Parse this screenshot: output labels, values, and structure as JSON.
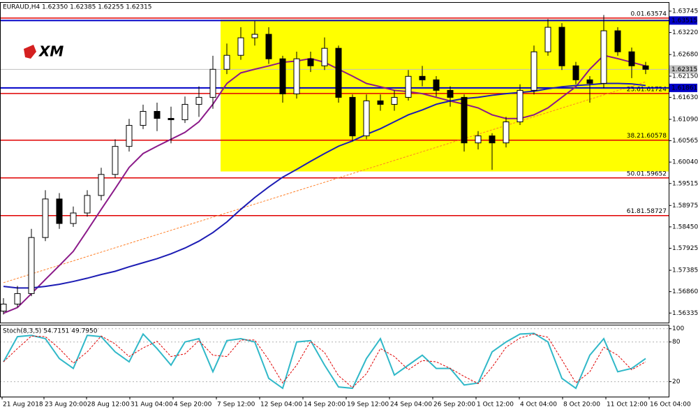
{
  "chart_data": [
    {
      "type": "candlestick",
      "title": "EURAUD,H4  1.62350 1.62385 1.62255 1.62315",
      "logo": "XM",
      "ylim": [
        1.561,
        1.6395
      ],
      "yticks": [
        {
          "value": 1.63745,
          "label": "1.63745"
        },
        {
          "value": 1.6322,
          "label": "1.63220"
        },
        {
          "value": 1.6268,
          "label": "1.62680"
        },
        {
          "value": 1.6215,
          "label": "1.62150"
        },
        {
          "value": 1.6163,
          "label": "1.61630"
        },
        {
          "value": 1.6109,
          "label": "1.61090"
        },
        {
          "value": 1.60565,
          "label": "1.60565"
        },
        {
          "value": 1.6004,
          "label": "1.60040"
        },
        {
          "value": 1.59515,
          "label": "1.59515"
        },
        {
          "value": 1.58975,
          "label": "1.58975"
        },
        {
          "value": 1.5845,
          "label": "1.58450"
        },
        {
          "value": 1.57925,
          "label": "1.57925"
        },
        {
          "value": 1.57385,
          "label": "1.57385"
        },
        {
          "value": 1.5686,
          "label": "1.56860"
        },
        {
          "value": 1.56335,
          "label": "1.56335"
        }
      ],
      "xticks": [
        {
          "value": -0.1,
          "label": "21 Aug 2018"
        },
        {
          "value": 2.9,
          "label": "23 Aug 20:00"
        },
        {
          "value": 5.95,
          "label": "28 Aug 12:00"
        },
        {
          "value": 9.05,
          "label": "31 Aug 04:00"
        },
        {
          "value": 12.15,
          "label": "4 Sep 20:00"
        },
        {
          "value": 15.25,
          "label": "7 Sep 12:00"
        },
        {
          "value": 18.35,
          "label": "12 Sep 04:00"
        },
        {
          "value": 21.45,
          "label": "14 Sep 20:00"
        },
        {
          "value": 24.55,
          "label": "19 Sep 12:00"
        },
        {
          "value": 27.65,
          "label": "24 Sep 04:00"
        },
        {
          "value": 30.75,
          "label": "26 Sep 20:00"
        },
        {
          "value": 33.85,
          "label": "1 Oct 12:00"
        },
        {
          "value": 36.95,
          "label": "4 Oct 04:00"
        },
        {
          "value": 40.05,
          "label": "8 Oct 20:00"
        },
        {
          "value": 43.15,
          "label": "11 Oct 12:00"
        },
        {
          "value": 46.25,
          "label": "16 Oct 04:00"
        }
      ],
      "candles": {
        "open": [
          1.56383,
          1.56555,
          1.56813,
          1.58189,
          1.59135,
          1.58533,
          1.58791,
          1.59221,
          1.59737,
          1.60425,
          1.60941,
          1.61285,
          1.61113,
          1.61079,
          1.61457,
          1.61629,
          1.62317,
          1.62661,
          1.63091,
          1.63177,
          1.62575,
          1.61715,
          1.62575,
          1.62403,
          1.62833,
          1.61629,
          1.60683,
          1.61543,
          1.61457,
          1.61629,
          1.62145,
          1.62059,
          1.61801,
          1.61629,
          1.60511,
          1.60683,
          1.60511,
          1.61027,
          1.61801,
          1.62747,
          1.63349,
          1.62403,
          1.62059,
          1.61973,
          1.63263,
          1.62747,
          1.62403
        ],
        "high": [
          1.567,
          1.57,
          1.584,
          1.5935,
          1.5928,
          1.5895,
          1.5935,
          1.599,
          1.606,
          1.611,
          1.6145,
          1.615,
          1.614,
          1.6165,
          1.619,
          1.6265,
          1.6295,
          1.6335,
          1.635,
          1.6335,
          1.6265,
          1.6275,
          1.6275,
          1.631,
          1.629,
          1.617,
          1.617,
          1.617,
          1.618,
          1.623,
          1.624,
          1.6215,
          1.619,
          1.617,
          1.608,
          1.6075,
          1.6115,
          1.6195,
          1.629,
          1.6355,
          1.6345,
          1.625,
          1.6215,
          1.6365,
          1.6335,
          1.6285,
          1.625
        ],
        "low": [
          1.563,
          1.5648,
          1.5675,
          1.581,
          1.584,
          1.5845,
          1.587,
          1.591,
          1.5965,
          1.603,
          1.6085,
          1.608,
          1.605,
          1.61,
          1.6115,
          1.6135,
          1.622,
          1.6255,
          1.629,
          1.6245,
          1.615,
          1.616,
          1.6225,
          1.623,
          1.615,
          1.6055,
          1.606,
          1.613,
          1.613,
          1.6155,
          1.619,
          1.6165,
          1.614,
          1.603,
          1.6035,
          1.5985,
          1.604,
          1.6095,
          1.617,
          1.6265,
          1.623,
          1.6195,
          1.615,
          1.6185,
          1.6265,
          1.621,
          1.622
        ],
        "close": [
          1.56555,
          1.56813,
          1.58189,
          1.59135,
          1.58533,
          1.58791,
          1.59221,
          1.59737,
          1.60425,
          1.60941,
          1.61285,
          1.61113,
          1.61079,
          1.61457,
          1.61629,
          1.62317,
          1.62661,
          1.63091,
          1.63177,
          1.62575,
          1.61715,
          1.62575,
          1.62403,
          1.62833,
          1.61629,
          1.60683,
          1.61543,
          1.61457,
          1.61629,
          1.62145,
          1.62059,
          1.61801,
          1.61629,
          1.60511,
          1.60683,
          1.60511,
          1.61027,
          1.61801,
          1.62747,
          1.63349,
          1.62403,
          1.62059,
          1.61973,
          1.63263,
          1.62747,
          1.62403,
          1.62317
        ]
      },
      "series": [
        {
          "color": "#8b1a89",
          "values": [
            1.5633,
            1.5647,
            1.5681,
            1.5716,
            1.575,
            1.5785,
            1.5836,
            1.5888,
            1.5939,
            1.5991,
            1.6025,
            1.6043,
            1.606,
            1.6077,
            1.6103,
            1.6146,
            1.6197,
            1.6223,
            1.6232,
            1.624,
            1.6249,
            1.6252,
            1.6258,
            1.6249,
            1.6232,
            1.6215,
            1.6197,
            1.6189,
            1.618,
            1.6177,
            1.6172,
            1.6163,
            1.6154,
            1.6146,
            1.6137,
            1.612,
            1.6111,
            1.6111,
            1.612,
            1.6137,
            1.6163,
            1.6189,
            1.6232,
            1.6266,
            1.6258,
            1.6249,
            1.624
          ]
        },
        {
          "color": "#1c1cb4",
          "values": [
            1.5699,
            1.5695,
            1.5695,
            1.5699,
            1.5704,
            1.5711,
            1.5719,
            1.5728,
            1.5736,
            1.5747,
            1.5757,
            1.5767,
            1.5779,
            1.5793,
            1.581,
            1.5831,
            1.5857,
            1.5888,
            1.5917,
            1.5943,
            1.5967,
            1.5986,
            1.6006,
            1.6025,
            1.6043,
            1.6056,
            1.6072,
            1.6086,
            1.6103,
            1.612,
            1.6132,
            1.6146,
            1.6154,
            1.616,
            1.6163,
            1.6168,
            1.6172,
            1.6175,
            1.6178,
            1.6184,
            1.6189,
            1.6192,
            1.6194,
            1.6197,
            1.6197,
            1.6196,
            1.6192
          ]
        }
      ],
      "trend_line": {
        "x": [
          0,
          46
        ],
        "values": [
          1.5708,
          1.6201
        ],
        "color": "#ff7f27"
      },
      "rectangle": {
        "start": 15.55,
        "ylim": [
          1.5981,
          1.6354
        ],
        "color": "#ffff00"
      },
      "levels": [
        {
          "value": 1.63574,
          "label": "0.01.63574",
          "color": "#e00000"
        },
        {
          "value": 1.61724,
          "label": "23.61.61724",
          "color": "#e00000"
        },
        {
          "value": 1.60578,
          "label": "38.21.60578",
          "color": "#e00000"
        },
        {
          "value": 1.59652,
          "label": "50.01.59652",
          "color": "#e00000"
        },
        {
          "value": 1.58727,
          "label": "61.81.58727",
          "color": "#e00000"
        }
      ],
      "price_lines": [
        {
          "value": 1.63515,
          "color": "#0000c8",
          "text_color": "#ffffff"
        },
        {
          "value": 1.61861,
          "color": "#0000c8",
          "text_color": "#ffffff"
        },
        {
          "value": 1.62315,
          "color": "#c0c0c0",
          "text_color": "#000000"
        }
      ]
    },
    {
      "type": "line",
      "title": "Stoch(8,3,5) 54.7151 49.7950",
      "ylim": [
        -2.6,
        105
      ],
      "yticks": [
        100,
        80,
        20
      ],
      "grid": true,
      "series": [
        {
          "color": "#30b8c8",
          "values": [
            50,
            88,
            90,
            85,
            55,
            40,
            90,
            88,
            65,
            50,
            92,
            70,
            45,
            80,
            85,
            35,
            82,
            85,
            80,
            25,
            10,
            80,
            82,
            45,
            12,
            10,
            55,
            85,
            30,
            45,
            60,
            40,
            40,
            15,
            18,
            65,
            80,
            92,
            93,
            80,
            25,
            10,
            60,
            85,
            35,
            40,
            55
          ]
        },
        {
          "color": "#e00000",
          "dashed": true,
          "values": [
            50,
            70,
            89,
            88,
            70,
            48,
            65,
            89,
            77,
            58,
            71,
            81,
            58,
            62,
            82,
            60,
            58,
            83,
            83,
            53,
            18,
            45,
            81,
            64,
            29,
            11,
            32,
            70,
            58,
            38,
            52,
            50,
            40,
            28,
            17,
            42,
            72,
            86,
            92,
            87,
            53,
            18,
            35,
            72,
            60,
            38,
            50
          ]
        }
      ]
    }
  ]
}
